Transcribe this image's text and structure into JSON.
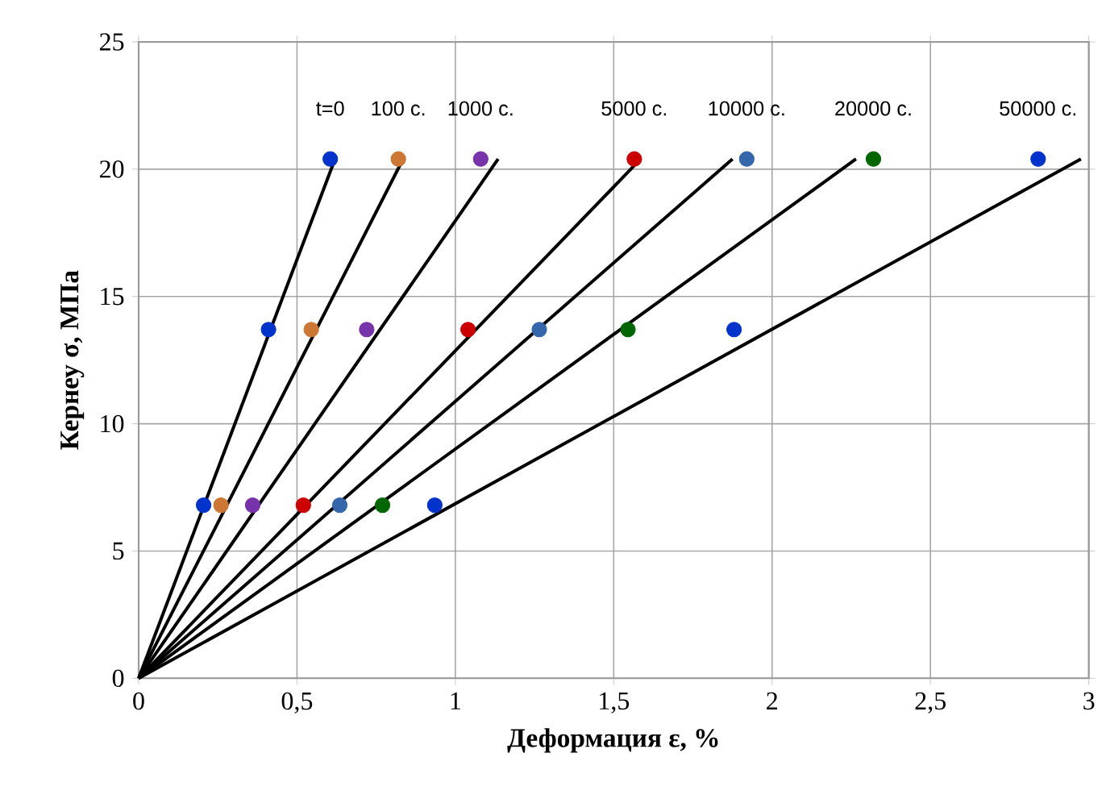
{
  "chart_data": {
    "type": "scatter",
    "xlabel": "Деформация ε, %",
    "ylabel": "Кернеу σ, МПа",
    "xlim": [
      0,
      3
    ],
    "ylim": [
      0,
      25
    ],
    "xticks": [
      0,
      {
        "value": 0.5,
        "label": "0,5"
      },
      1,
      {
        "value": 1.5,
        "label": "1,5"
      },
      2,
      {
        "value": 2.5,
        "label": "2,5"
      },
      3
    ],
    "yticks": [
      0,
      5,
      10,
      15,
      20,
      25
    ],
    "grid": true,
    "marker": "circle",
    "series": [
      {
        "type": "line",
        "color": "#000000",
        "line_style": "solid",
        "marker": "none",
        "x": [
          0,
          0.62
        ],
        "values": [
          0,
          20.4
        ]
      },
      {
        "type": "line",
        "color": "#000000",
        "line_style": "solid",
        "marker": "none",
        "x": [
          0,
          0.835
        ],
        "values": [
          0,
          20.4
        ]
      },
      {
        "type": "line",
        "color": "#000000",
        "line_style": "solid",
        "marker": "none",
        "x": [
          0,
          1.135
        ],
        "values": [
          0,
          20.4
        ]
      },
      {
        "type": "line",
        "color": "#000000",
        "line_style": "solid",
        "marker": "none",
        "x": [
          0,
          1.585
        ],
        "values": [
          0,
          20.4
        ]
      },
      {
        "type": "line",
        "color": "#000000",
        "line_style": "solid",
        "marker": "none",
        "x": [
          0,
          1.875
        ],
        "values": [
          0,
          20.4
        ]
      },
      {
        "type": "line",
        "color": "#000000",
        "line_style": "solid",
        "marker": "none",
        "x": [
          0,
          2.265
        ],
        "values": [
          0,
          20.4
        ]
      },
      {
        "type": "line",
        "color": "#000000",
        "line_style": "solid",
        "marker": "none",
        "x": [
          0,
          2.975
        ],
        "values": [
          0,
          20.4
        ]
      },
      {
        "name": "t=0",
        "color": "#0033cc",
        "x": [
          0.205,
          0.41,
          0.605
        ],
        "values": [
          6.8,
          13.7,
          20.4
        ]
      },
      {
        "name": "100 с.",
        "color": "#cc7733",
        "x": [
          0.26,
          0.545,
          0.82
        ],
        "values": [
          6.8,
          13.7,
          20.4
        ]
      },
      {
        "name": "1000 с.",
        "color": "#7733aa",
        "x": [
          0.36,
          0.72,
          1.08
        ],
        "values": [
          6.8,
          13.7,
          20.4
        ]
      },
      {
        "name": "5000 с.",
        "color": "#cc0000",
        "x": [
          0.52,
          1.04,
          1.565
        ],
        "values": [
          6.8,
          13.7,
          20.4
        ]
      },
      {
        "name": "10000 с.",
        "color": "#3366aa",
        "x": [
          0.635,
          1.265,
          1.92
        ],
        "values": [
          6.8,
          13.7,
          20.4
        ]
      },
      {
        "name": "20000 с.",
        "color": "#006600",
        "x": [
          0.77,
          1.545,
          2.32
        ],
        "values": [
          6.8,
          13.7,
          20.4
        ]
      },
      {
        "name": "50000 с.",
        "color": "#0033cc",
        "x": [
          0.935,
          1.88,
          2.84
        ],
        "values": [
          6.8,
          13.7,
          20.4
        ]
      }
    ]
  }
}
